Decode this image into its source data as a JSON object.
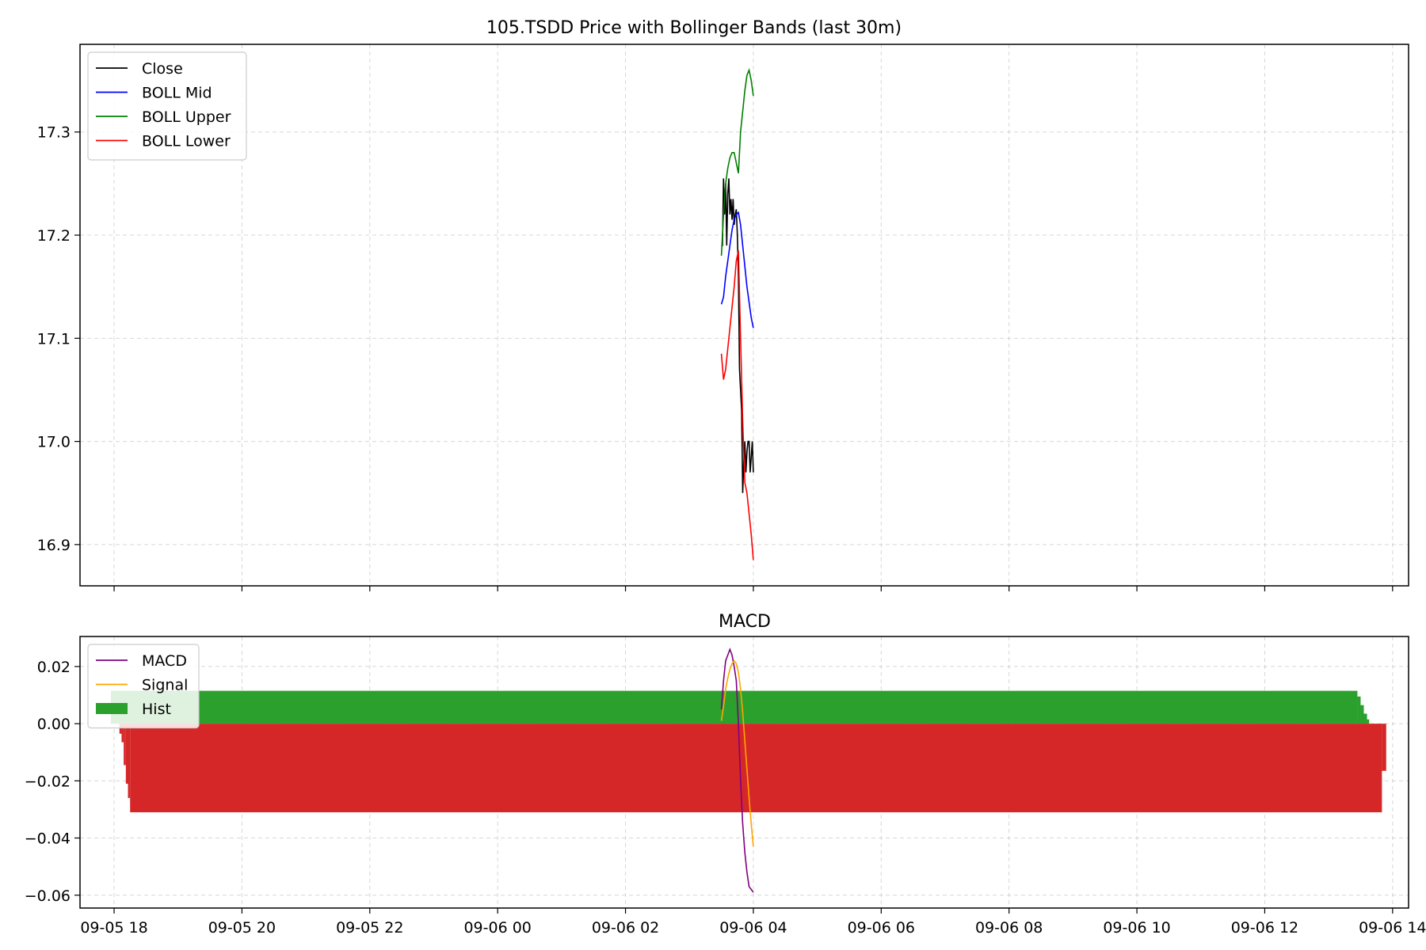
{
  "chart_data": [
    {
      "type": "line",
      "title": "105.TSDD Price with Bollinger Bands (last 30m)",
      "xlabel": "",
      "ylabel": "",
      "x_type": "datetime",
      "xlim": [
        "2025-09-05 17:28",
        "2025-09-06 14:15"
      ],
      "ylim": [
        16.86,
        17.385
      ],
      "yticks": [
        16.9,
        17.0,
        17.1,
        17.2,
        17.3
      ],
      "ytick_labels": [
        "16.9",
        "17.0",
        "17.1",
        "17.2",
        "17.3"
      ],
      "grid": true,
      "legend_position": "upper-left",
      "series": [
        {
          "name": "Close",
          "color": "#000000",
          "x": [
            "2025-09-06 03:30",
            "2025-09-06 03:31",
            "2025-09-06 03:32",
            "2025-09-06 03:33",
            "2025-09-06 03:34",
            "2025-09-06 03:35",
            "2025-09-06 03:36",
            "2025-09-06 03:37",
            "2025-09-06 03:38",
            "2025-09-06 03:39",
            "2025-09-06 03:40",
            "2025-09-06 03:41",
            "2025-09-06 03:42",
            "2025-09-06 03:43",
            "2025-09-06 03:44",
            "2025-09-06 03:45",
            "2025-09-06 03:46",
            "2025-09-06 03:47",
            "2025-09-06 03:48",
            "2025-09-06 03:49",
            "2025-09-06 03:50",
            "2025-09-06 03:51",
            "2025-09-06 03:52",
            "2025-09-06 03:53",
            "2025-09-06 03:54",
            "2025-09-06 03:55",
            "2025-09-06 03:56",
            "2025-09-06 03:57",
            "2025-09-06 03:58",
            "2025-09-06 03:59",
            "2025-09-06 04:00"
          ],
          "values": [
            17.19,
            17.19,
            17.255,
            17.22,
            17.25,
            17.19,
            17.24,
            17.255,
            17.22,
            17.235,
            17.215,
            17.235,
            17.21,
            17.22,
            17.225,
            17.2,
            17.16,
            17.07,
            17.05,
            17.03,
            16.95,
            16.98,
            17.0,
            16.97,
            16.99,
            17.0,
            17.0,
            16.97,
            16.985,
            17.0,
            16.97
          ]
        },
        {
          "name": "BOLL Mid",
          "color": "#0000ff",
          "x": [
            "2025-09-06 03:30",
            "2025-09-06 03:32",
            "2025-09-06 03:34",
            "2025-09-06 03:36",
            "2025-09-06 03:38",
            "2025-09-06 03:40",
            "2025-09-06 03:42",
            "2025-09-06 03:44",
            "2025-09-06 03:46",
            "2025-09-06 03:48",
            "2025-09-06 03:50",
            "2025-09-06 03:52",
            "2025-09-06 03:54",
            "2025-09-06 03:56",
            "2025-09-06 03:58",
            "2025-09-06 04:00"
          ],
          "values": [
            17.133,
            17.14,
            17.16,
            17.175,
            17.19,
            17.205,
            17.215,
            17.22,
            17.222,
            17.21,
            17.19,
            17.17,
            17.15,
            17.135,
            17.12,
            17.11
          ]
        },
        {
          "name": "BOLL Upper",
          "color": "#008000",
          "x": [
            "2025-09-06 03:30",
            "2025-09-06 03:32",
            "2025-09-06 03:34",
            "2025-09-06 03:36",
            "2025-09-06 03:38",
            "2025-09-06 03:40",
            "2025-09-06 03:42",
            "2025-09-06 03:44",
            "2025-09-06 03:46",
            "2025-09-06 03:48",
            "2025-09-06 03:50",
            "2025-09-06 03:52",
            "2025-09-06 03:54",
            "2025-09-06 03:56",
            "2025-09-06 03:58",
            "2025-09-06 04:00"
          ],
          "values": [
            17.18,
            17.22,
            17.25,
            17.265,
            17.275,
            17.28,
            17.28,
            17.27,
            17.26,
            17.3,
            17.32,
            17.34,
            17.355,
            17.36,
            17.35,
            17.335
          ]
        },
        {
          "name": "BOLL Lower",
          "color": "#ff0000",
          "x": [
            "2025-09-06 03:30",
            "2025-09-06 03:32",
            "2025-09-06 03:34",
            "2025-09-06 03:36",
            "2025-09-06 03:38",
            "2025-09-06 03:40",
            "2025-09-06 03:42",
            "2025-09-06 03:44",
            "2025-09-06 03:46",
            "2025-09-06 03:48",
            "2025-09-06 03:50",
            "2025-09-06 03:52",
            "2025-09-06 03:54",
            "2025-09-06 03:56",
            "2025-09-06 03:58",
            "2025-09-06 04:00"
          ],
          "values": [
            17.085,
            17.06,
            17.07,
            17.09,
            17.11,
            17.13,
            17.15,
            17.175,
            17.185,
            17.1,
            17.02,
            16.96,
            16.95,
            16.93,
            16.91,
            16.885
          ]
        }
      ]
    },
    {
      "type": "bar",
      "title": "MACD",
      "xlabel": "",
      "ylabel": "",
      "x_type": "datetime",
      "xlim": [
        "2025-09-05 17:28",
        "2025-09-06 14:15"
      ],
      "ylim": [
        -0.0645,
        0.0305
      ],
      "yticks": [
        -0.06,
        -0.04,
        -0.02,
        0.0,
        0.02
      ],
      "ytick_labels": [
        "−0.06",
        "−0.04",
        "−0.02",
        "0.00",
        "0.02"
      ],
      "xticks": [
        "2025-09-05 18:00",
        "2025-09-05 20:00",
        "2025-09-05 22:00",
        "2025-09-06 00:00",
        "2025-09-06 02:00",
        "2025-09-06 04:00",
        "2025-09-06 06:00",
        "2025-09-06 08:00",
        "2025-09-06 10:00",
        "2025-09-06 12:00",
        "2025-09-06 14:00"
      ],
      "xtick_labels": [
        "09-05 18",
        "09-05 20",
        "09-05 22",
        "09-06 00",
        "09-06 02",
        "09-06 04",
        "09-06 06",
        "09-06 08",
        "09-06 10",
        "09-06 12",
        "09-06 14"
      ],
      "grid": true,
      "legend_position": "upper-left",
      "series": [
        {
          "name": "MACD",
          "color": "#800080",
          "x": [
            "2025-09-06 03:30",
            "2025-09-06 03:32",
            "2025-09-06 03:34",
            "2025-09-06 03:36",
            "2025-09-06 03:38",
            "2025-09-06 03:40",
            "2025-09-06 03:42",
            "2025-09-06 03:44",
            "2025-09-06 03:46",
            "2025-09-06 03:48",
            "2025-09-06 03:50",
            "2025-09-06 03:52",
            "2025-09-06 03:54",
            "2025-09-06 03:56",
            "2025-09-06 03:58",
            "2025-09-06 04:00"
          ],
          "values": [
            0.005,
            0.015,
            0.022,
            0.024,
            0.026,
            0.024,
            0.02,
            0.015,
            0.0,
            -0.02,
            -0.035,
            -0.045,
            -0.052,
            -0.057,
            -0.058,
            -0.059
          ]
        },
        {
          "name": "Signal",
          "color": "#ffa500",
          "x": [
            "2025-09-06 03:30",
            "2025-09-06 03:32",
            "2025-09-06 03:34",
            "2025-09-06 03:36",
            "2025-09-06 03:38",
            "2025-09-06 03:40",
            "2025-09-06 03:42",
            "2025-09-06 03:44",
            "2025-09-06 03:46",
            "2025-09-06 03:48",
            "2025-09-06 03:50",
            "2025-09-06 03:52",
            "2025-09-06 03:54",
            "2025-09-06 03:56",
            "2025-09-06 03:58",
            "2025-09-06 04:00"
          ],
          "values": [
            0.001,
            0.006,
            0.012,
            0.016,
            0.019,
            0.021,
            0.022,
            0.021,
            0.018,
            0.012,
            0.004,
            -0.006,
            -0.016,
            -0.026,
            -0.035,
            -0.043
          ]
        }
      ],
      "hist": {
        "name": "Hist",
        "positive_color": "#2ca02c",
        "negative_color": "#d62728",
        "bars": [
          {
            "x_start": "2025-09-05 17:57",
            "x_end": "2025-09-06 13:27",
            "value": 0.0115
          },
          {
            "x_start": "2025-09-06 13:27",
            "x_end": "2025-09-06 13:30",
            "value": 0.0095
          },
          {
            "x_start": "2025-09-06 13:30",
            "x_end": "2025-09-06 13:33",
            "value": 0.0065
          },
          {
            "x_start": "2025-09-06 13:33",
            "x_end": "2025-09-06 13:36",
            "value": 0.0035
          },
          {
            "x_start": "2025-09-06 13:36",
            "x_end": "2025-09-06 13:38",
            "value": 0.0015
          },
          {
            "x_start": "2025-09-05 18:05",
            "x_end": "2025-09-05 18:07",
            "value": -0.0035
          },
          {
            "x_start": "2025-09-05 18:07",
            "x_end": "2025-09-05 18:09",
            "value": -0.0065
          },
          {
            "x_start": "2025-09-05 18:09",
            "x_end": "2025-09-05 18:11",
            "value": -0.0145
          },
          {
            "x_start": "2025-09-05 18:11",
            "x_end": "2025-09-05 18:13",
            "value": -0.021
          },
          {
            "x_start": "2025-09-05 18:13",
            "x_end": "2025-09-05 18:15",
            "value": -0.026
          },
          {
            "x_start": "2025-09-05 18:15",
            "x_end": "2025-09-06 13:50",
            "value": -0.031
          },
          {
            "x_start": "2025-09-06 13:50",
            "x_end": "2025-09-06 13:54",
            "value": -0.0165
          }
        ]
      }
    }
  ]
}
